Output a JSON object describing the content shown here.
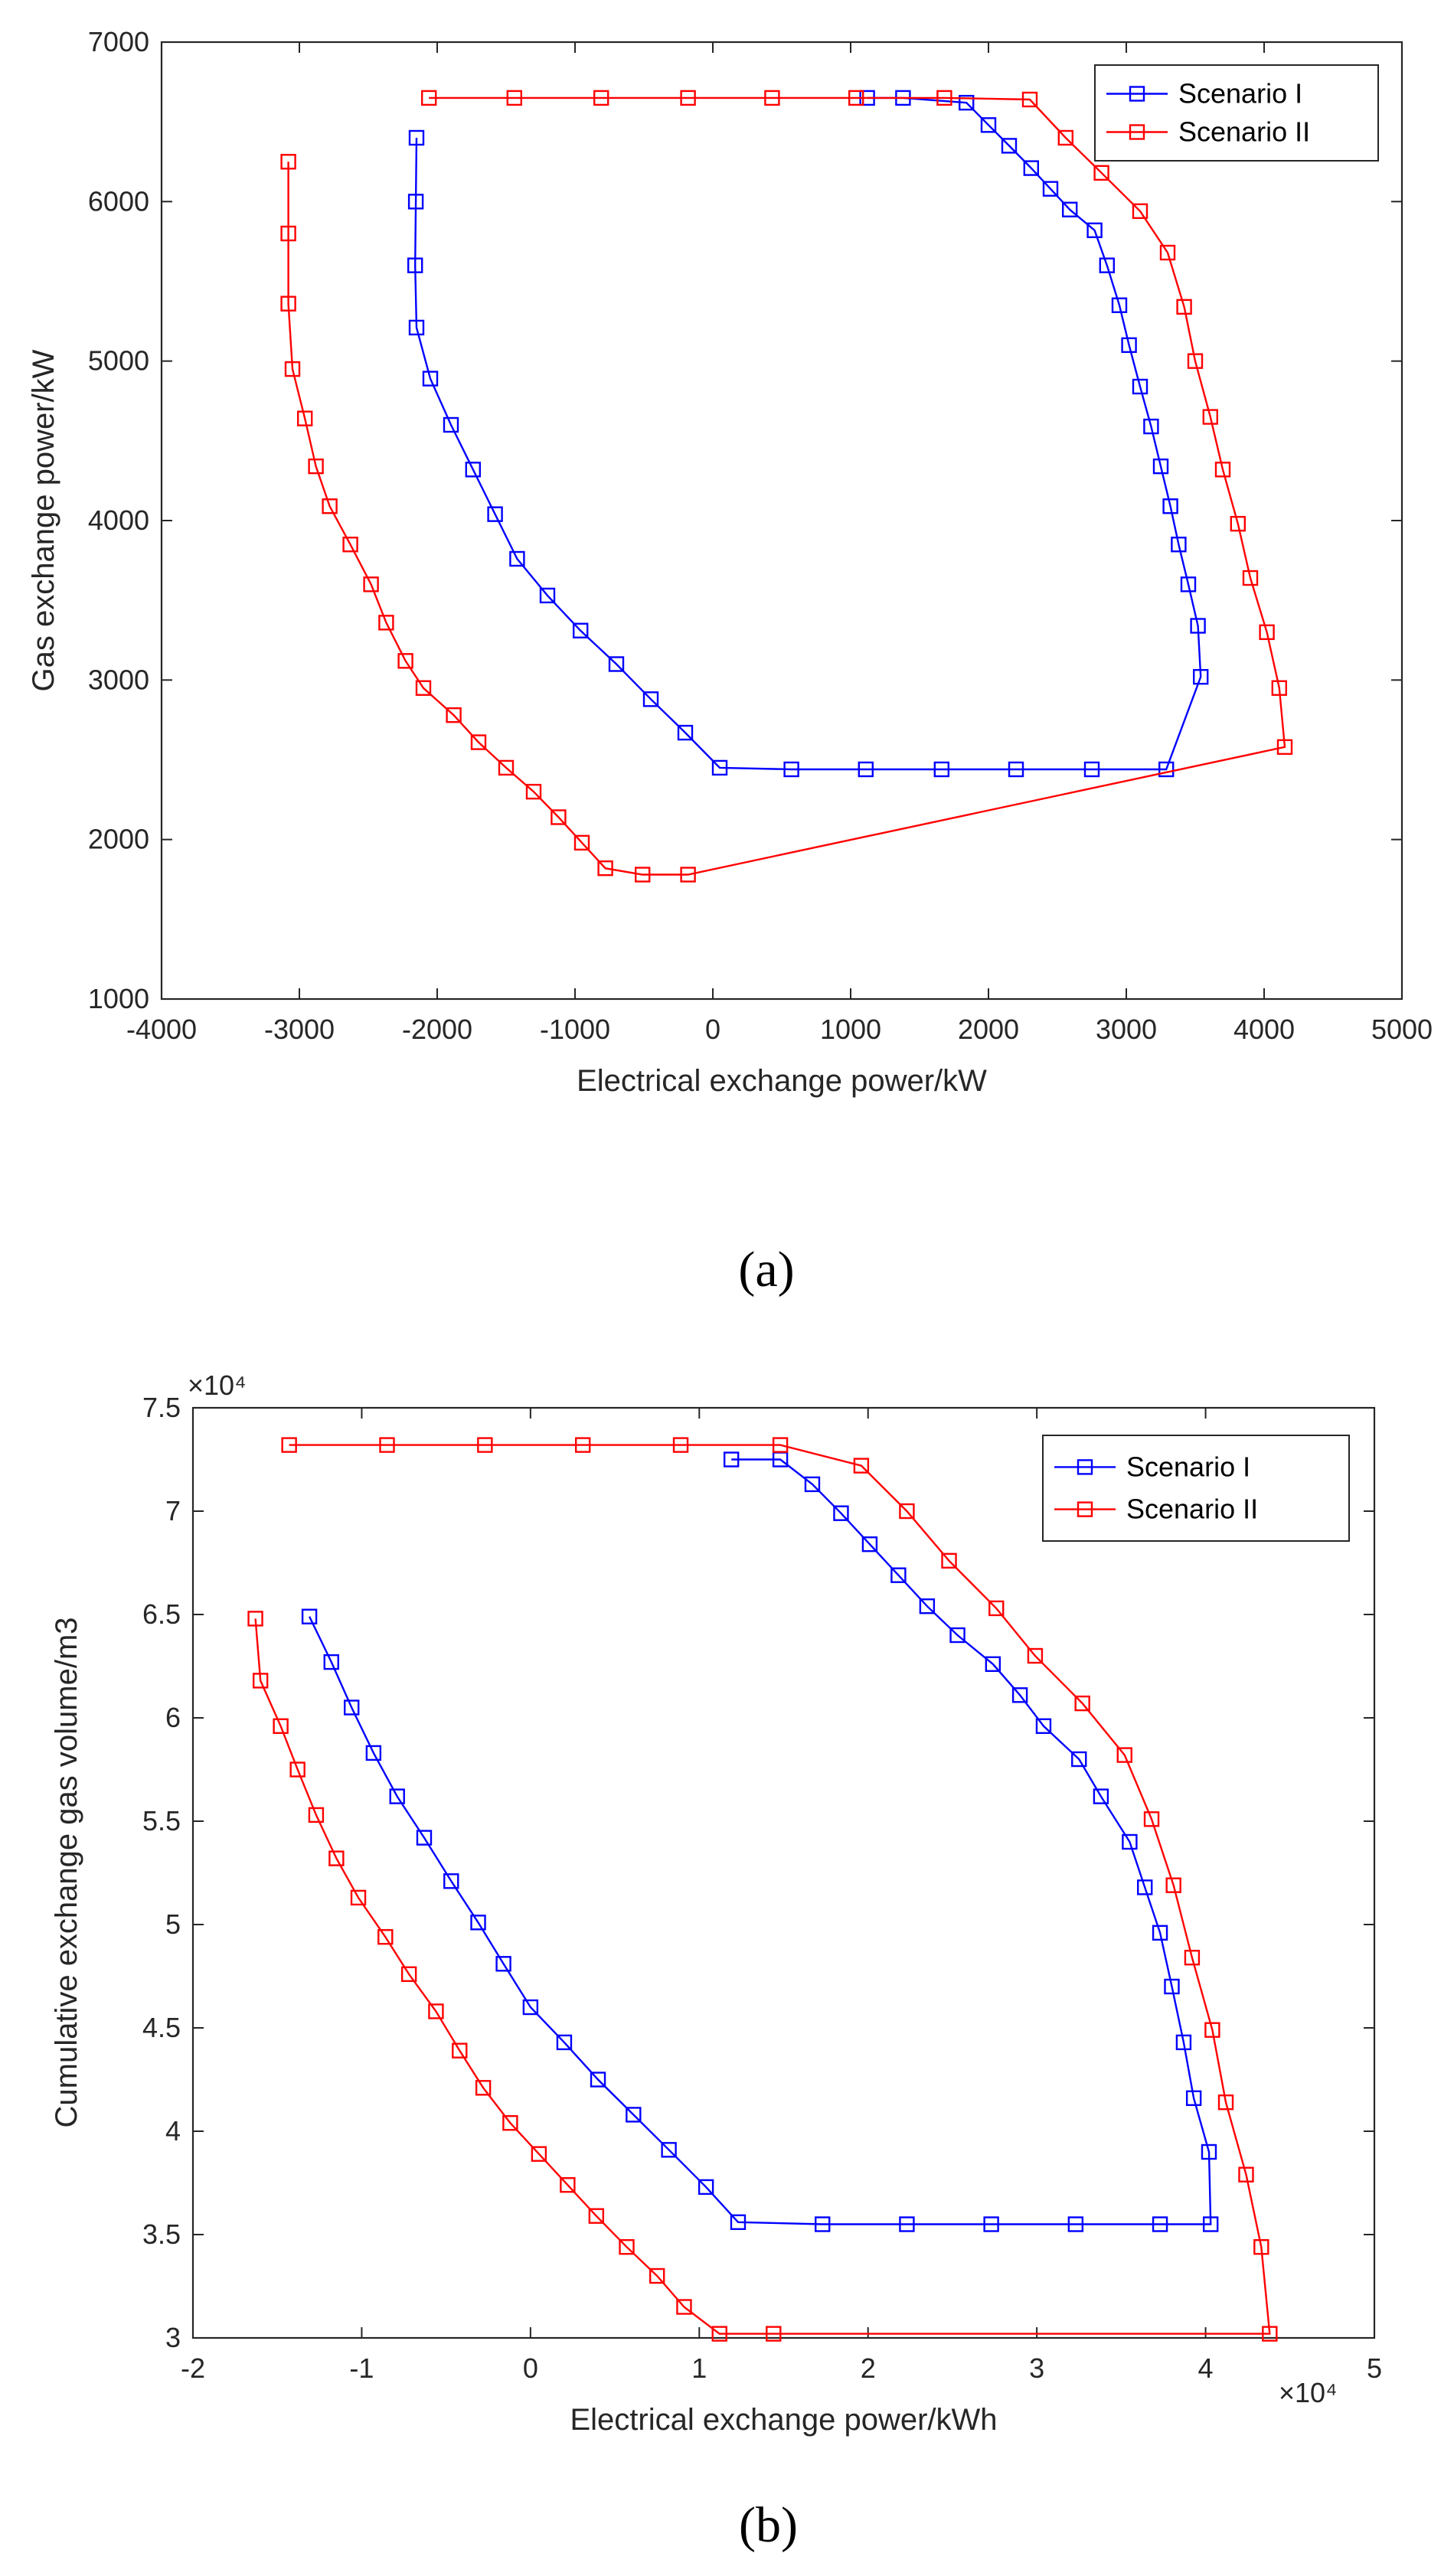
{
  "chart_data": [
    {
      "type": "line",
      "caption": "(a)",
      "xlabel": "Electrical exchange power/kW",
      "ylabel": "Gas exchange power/kW",
      "xlim": [
        -4000,
        5000
      ],
      "ylim": [
        1000,
        7000
      ],
      "xticks": [
        -4000,
        -3000,
        -2000,
        -1000,
        0,
        1000,
        2000,
        3000,
        4000,
        5000
      ],
      "yticks": [
        1000,
        2000,
        3000,
        4000,
        5000,
        6000,
        7000
      ],
      "xtick_labels": [
        "-4000",
        "-3000",
        "-2000",
        "-1000",
        "0",
        "1000",
        "2000",
        "3000",
        "4000",
        "5000"
      ],
      "ytick_labels": [
        "1000",
        "2000",
        "3000",
        "4000",
        "5000",
        "6000",
        "7000"
      ],
      "exponent_x": "",
      "exponent_y": "",
      "grid": false,
      "legend_position": "top-right",
      "series": [
        {
          "name": "Scenario I",
          "color": "#0000FF",
          "marker": "square",
          "points": [
            [
              -2150,
              6400
            ],
            [
              -2155,
              6000
            ],
            [
              -2160,
              5600
            ],
            [
              -2150,
              5210
            ],
            [
              -2050,
              4890
            ],
            [
              -1900,
              4600
            ],
            [
              -1740,
              4320
            ],
            [
              -1580,
              4040
            ],
            [
              -1420,
              3760
            ],
            [
              -1200,
              3530
            ],
            [
              -960,
              3310
            ],
            [
              -700,
              3100
            ],
            [
              -450,
              2880
            ],
            [
              -200,
              2670
            ],
            [
              50,
              2450
            ],
            [
              570,
              2440
            ],
            [
              1110,
              2440
            ],
            [
              1660,
              2440
            ],
            [
              2200,
              2440
            ],
            [
              2750,
              2440
            ],
            [
              3290,
              2440
            ],
            [
              3540,
              3020
            ],
            [
              3520,
              3340
            ],
            [
              3450,
              3600
            ],
            [
              3380,
              3850
            ],
            [
              3320,
              4090
            ],
            [
              3250,
              4340
            ],
            [
              3180,
              4590
            ],
            [
              3100,
              4840
            ],
            [
              3020,
              5100
            ],
            [
              2950,
              5350
            ],
            [
              2860,
              5600
            ],
            [
              2770,
              5820
            ],
            [
              2590,
              5950
            ],
            [
              2450,
              6080
            ],
            [
              2310,
              6210
            ],
            [
              2150,
              6350
            ],
            [
              2000,
              6480
            ],
            [
              1840,
              6620
            ],
            [
              1380,
              6650
            ],
            [
              1120,
              6650
            ]
          ]
        },
        {
          "name": "Scenario II",
          "color": "#FF0000",
          "marker": "square",
          "points": [
            [
              -3080,
              6250
            ],
            [
              -3080,
              5800
            ],
            [
              -3080,
              5360
            ],
            [
              -3050,
              4950
            ],
            [
              -2960,
              4640
            ],
            [
              -2880,
              4340
            ],
            [
              -2780,
              4090
            ],
            [
              -2630,
              3850
            ],
            [
              -2480,
              3600
            ],
            [
              -2370,
              3360
            ],
            [
              -2230,
              3120
            ],
            [
              -2100,
              2950
            ],
            [
              -1880,
              2780
            ],
            [
              -1700,
              2610
            ],
            [
              -1500,
              2450
            ],
            [
              -1300,
              2300
            ],
            [
              -1120,
              2140
            ],
            [
              -950,
              1980
            ],
            [
              -780,
              1820
            ],
            [
              -510,
              1780
            ],
            [
              -180,
              1780
            ],
            [
              4150,
              2580
            ],
            [
              4110,
              2950
            ],
            [
              4020,
              3300
            ],
            [
              3900,
              3640
            ],
            [
              3810,
              3980
            ],
            [
              3700,
              4320
            ],
            [
              3610,
              4650
            ],
            [
              3500,
              5000
            ],
            [
              3420,
              5340
            ],
            [
              3300,
              5680
            ],
            [
              3100,
              5940
            ],
            [
              2820,
              6180
            ],
            [
              2560,
              6400
            ],
            [
              2300,
              6640
            ],
            [
              1680,
              6650
            ],
            [
              1040,
              6650
            ],
            [
              430,
              6650
            ],
            [
              -180,
              6650
            ],
            [
              -810,
              6650
            ],
            [
              -1440,
              6650
            ],
            [
              -2060,
              6650
            ]
          ]
        }
      ]
    },
    {
      "type": "line",
      "caption": "(b)",
      "xlabel": "Electrical exchange power/kWh",
      "ylabel": "Cumulative exchange gas volume/m3",
      "xlim": [
        -2,
        5
      ],
      "ylim": [
        3,
        7.5
      ],
      "xticks": [
        -2,
        -1,
        0,
        1,
        2,
        3,
        4,
        5
      ],
      "yticks": [
        3,
        3.5,
        4,
        4.5,
        5,
        5.5,
        6,
        6.5,
        7,
        7.5
      ],
      "xtick_labels": [
        "-2",
        "-1",
        "0",
        "1",
        "2",
        "3",
        "4",
        "5"
      ],
      "ytick_labels": [
        "3",
        "3.5",
        "4",
        "4.5",
        "5",
        "5.5",
        "6",
        "6.5",
        "7",
        "7.5"
      ],
      "exponent_x": "×10⁴",
      "exponent_y": "×10⁴",
      "grid": false,
      "legend_position": "top-right",
      "series": [
        {
          "name": "Scenario I",
          "color": "#0000FF",
          "marker": "square",
          "points": [
            [
              -1.31,
              6.49
            ],
            [
              -1.18,
              6.27
            ],
            [
              -1.06,
              6.05
            ],
            [
              -0.93,
              5.83
            ],
            [
              -0.79,
              5.62
            ],
            [
              -0.63,
              5.42
            ],
            [
              -0.47,
              5.21
            ],
            [
              -0.31,
              5.01
            ],
            [
              -0.16,
              4.81
            ],
            [
              0.0,
              4.6
            ],
            [
              0.2,
              4.43
            ],
            [
              0.4,
              4.25
            ],
            [
              0.61,
              4.08
            ],
            [
              0.82,
              3.91
            ],
            [
              1.04,
              3.73
            ],
            [
              1.23,
              3.56
            ],
            [
              1.73,
              3.55
            ],
            [
              2.23,
              3.55
            ],
            [
              2.73,
              3.55
            ],
            [
              3.23,
              3.55
            ],
            [
              3.73,
              3.55
            ],
            [
              4.03,
              3.55
            ],
            [
              4.02,
              3.9
            ],
            [
              3.93,
              4.16
            ],
            [
              3.87,
              4.43
            ],
            [
              3.8,
              4.7
            ],
            [
              3.73,
              4.96
            ],
            [
              3.64,
              5.18
            ],
            [
              3.55,
              5.4
            ],
            [
              3.38,
              5.62
            ],
            [
              3.25,
              5.8
            ],
            [
              3.04,
              5.96
            ],
            [
              2.9,
              6.11
            ],
            [
              2.74,
              6.26
            ],
            [
              2.53,
              6.4
            ],
            [
              2.35,
              6.54
            ],
            [
              2.18,
              6.69
            ],
            [
              2.01,
              6.84
            ],
            [
              1.84,
              6.99
            ],
            [
              1.67,
              7.13
            ],
            [
              1.48,
              7.25
            ],
            [
              1.19,
              7.25
            ]
          ]
        },
        {
          "name": "Scenario II",
          "color": "#FF0000",
          "marker": "square",
          "points": [
            [
              -1.63,
              6.48
            ],
            [
              -1.6,
              6.18
            ],
            [
              -1.48,
              5.96
            ],
            [
              -1.38,
              5.75
            ],
            [
              -1.27,
              5.53
            ],
            [
              -1.15,
              5.32
            ],
            [
              -1.02,
              5.13
            ],
            [
              -0.86,
              4.94
            ],
            [
              -0.72,
              4.76
            ],
            [
              -0.56,
              4.58
            ],
            [
              -0.42,
              4.39
            ],
            [
              -0.28,
              4.21
            ],
            [
              -0.12,
              4.04
            ],
            [
              0.05,
              3.89
            ],
            [
              0.22,
              3.74
            ],
            [
              0.39,
              3.59
            ],
            [
              0.57,
              3.44
            ],
            [
              0.75,
              3.3
            ],
            [
              0.91,
              3.15
            ],
            [
              1.12,
              3.02
            ],
            [
              1.44,
              3.02
            ],
            [
              4.38,
              3.02
            ],
            [
              4.33,
              3.44
            ],
            [
              4.24,
              3.79
            ],
            [
              4.12,
              4.14
            ],
            [
              4.04,
              4.49
            ],
            [
              3.92,
              4.84
            ],
            [
              3.81,
              5.19
            ],
            [
              3.68,
              5.51
            ],
            [
              3.52,
              5.82
            ],
            [
              3.27,
              6.07
            ],
            [
              2.99,
              6.3
            ],
            [
              2.76,
              6.53
            ],
            [
              2.48,
              6.76
            ],
            [
              2.23,
              7.0
            ],
            [
              1.96,
              7.22
            ],
            [
              1.48,
              7.32
            ],
            [
              0.89,
              7.32
            ],
            [
              0.31,
              7.32
            ],
            [
              -0.27,
              7.32
            ],
            [
              -0.85,
              7.32
            ],
            [
              -1.43,
              7.32
            ]
          ]
        }
      ]
    }
  ]
}
